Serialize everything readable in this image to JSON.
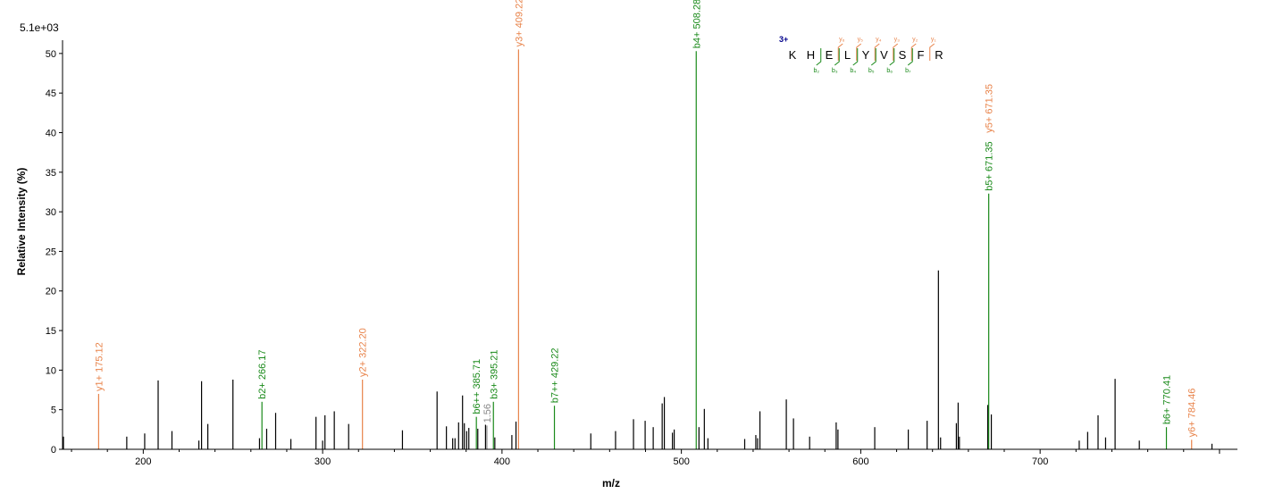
{
  "chart_data": {
    "type": "bar",
    "subtype": "mass-spectrum",
    "scale_label": "5.1e+03",
    "xlabel": "m/z",
    "ylabel": "Relative   Intensity (%)",
    "xlim": [
      155,
      810
    ],
    "ylim": [
      0,
      51
    ],
    "x_ticks": [
      200,
      300,
      400,
      500,
      600,
      700
    ],
    "y_ticks": [
      0,
      5,
      10,
      15,
      20,
      25,
      30,
      35,
      40,
      45,
      50
    ],
    "colors": {
      "y_ion": "#e8834a",
      "b_ion": "#1a8a1a",
      "unassigned": "#000000",
      "other": "#888888",
      "charge": "#00008b"
    },
    "peaks": [
      {
        "mz": 155.5,
        "intensity": 1.6
      },
      {
        "mz": 175.12,
        "intensity": 7.0,
        "ion": "y",
        "label": "y1+ 175.12"
      },
      {
        "mz": 190.8,
        "intensity": 1.6
      },
      {
        "mz": 200.8,
        "intensity": 2.0
      },
      {
        "mz": 208.3,
        "intensity": 8.7
      },
      {
        "mz": 216.0,
        "intensity": 2.3
      },
      {
        "mz": 231.0,
        "intensity": 1.1
      },
      {
        "mz": 232.5,
        "intensity": 8.6
      },
      {
        "mz": 236.0,
        "intensity": 3.2
      },
      {
        "mz": 250.0,
        "intensity": 8.8
      },
      {
        "mz": 264.8,
        "intensity": 1.4
      },
      {
        "mz": 266.17,
        "intensity": 6.0,
        "ion": "b",
        "label": "b2+ 266.17"
      },
      {
        "mz": 268.8,
        "intensity": 2.6
      },
      {
        "mz": 273.8,
        "intensity": 4.6
      },
      {
        "mz": 282.3,
        "intensity": 1.3
      },
      {
        "mz": 296.3,
        "intensity": 4.1
      },
      {
        "mz": 300.0,
        "intensity": 1.1
      },
      {
        "mz": 301.3,
        "intensity": 4.3
      },
      {
        "mz": 306.5,
        "intensity": 4.8
      },
      {
        "mz": 314.5,
        "intensity": 3.2
      },
      {
        "mz": 322.2,
        "intensity": 8.8,
        "ion": "y",
        "label": "y2+ 322.20"
      },
      {
        "mz": 344.5,
        "intensity": 2.4
      },
      {
        "mz": 363.8,
        "intensity": 7.3
      },
      {
        "mz": 369.0,
        "intensity": 2.9
      },
      {
        "mz": 372.5,
        "intensity": 1.4
      },
      {
        "mz": 373.8,
        "intensity": 1.4
      },
      {
        "mz": 375.8,
        "intensity": 3.4
      },
      {
        "mz": 378.0,
        "intensity": 6.8
      },
      {
        "mz": 379.0,
        "intensity": 3.3
      },
      {
        "mz": 380.3,
        "intensity": 2.3
      },
      {
        "mz": 381.5,
        "intensity": 2.7
      },
      {
        "mz": 385.71,
        "intensity": 4.1,
        "ion": "b",
        "label": "b6++ 385.71"
      },
      {
        "mz": 386.5,
        "intensity": 2.6
      },
      {
        "mz": 390.8,
        "intensity": 3.1
      },
      {
        "mz": 391.56,
        "intensity": 3.0,
        "ion": "other",
        "label": "1.56"
      },
      {
        "mz": 395.21,
        "intensity": 6.0,
        "ion": "b",
        "label": "b3+ 395.21"
      },
      {
        "mz": 396.0,
        "intensity": 1.5
      },
      {
        "mz": 405.5,
        "intensity": 1.8
      },
      {
        "mz": 407.8,
        "intensity": 3.5
      },
      {
        "mz": 409.22,
        "intensity": 50.5,
        "ion": "y",
        "label": "y3+ 409.22"
      },
      {
        "mz": 429.22,
        "intensity": 5.5,
        "ion": "b",
        "label": "b7++ 429.22"
      },
      {
        "mz": 449.5,
        "intensity": 2.0
      },
      {
        "mz": 463.3,
        "intensity": 2.3
      },
      {
        "mz": 473.3,
        "intensity": 3.8
      },
      {
        "mz": 479.8,
        "intensity": 3.6
      },
      {
        "mz": 484.3,
        "intensity": 2.8
      },
      {
        "mz": 489.3,
        "intensity": 5.8
      },
      {
        "mz": 490.5,
        "intensity": 6.6
      },
      {
        "mz": 495.0,
        "intensity": 2.1
      },
      {
        "mz": 496.0,
        "intensity": 2.5
      },
      {
        "mz": 508.28,
        "intensity": 50.3,
        "ion": "b",
        "label": "b4+ 508.28"
      },
      {
        "mz": 509.8,
        "intensity": 2.8
      },
      {
        "mz": 512.8,
        "intensity": 5.1
      },
      {
        "mz": 514.8,
        "intensity": 1.4
      },
      {
        "mz": 535.3,
        "intensity": 1.3
      },
      {
        "mz": 541.5,
        "intensity": 1.8
      },
      {
        "mz": 542.5,
        "intensity": 1.4
      },
      {
        "mz": 543.8,
        "intensity": 4.8
      },
      {
        "mz": 558.5,
        "intensity": 6.3
      },
      {
        "mz": 562.5,
        "intensity": 3.9
      },
      {
        "mz": 571.5,
        "intensity": 1.6
      },
      {
        "mz": 586.3,
        "intensity": 3.4
      },
      {
        "mz": 587.3,
        "intensity": 2.5
      },
      {
        "mz": 607.8,
        "intensity": 2.8
      },
      {
        "mz": 626.5,
        "intensity": 2.5
      },
      {
        "mz": 637.0,
        "intensity": 3.6
      },
      {
        "mz": 643.3,
        "intensity": 22.6
      },
      {
        "mz": 644.5,
        "intensity": 1.5
      },
      {
        "mz": 653.3,
        "intensity": 3.3
      },
      {
        "mz": 654.3,
        "intensity": 5.9
      },
      {
        "mz": 655.0,
        "intensity": 1.6
      },
      {
        "mz": 670.8,
        "intensity": 5.6
      },
      {
        "mz": 671.35,
        "intensity": 32.3,
        "ion": "b",
        "label": "b5+ 671.35"
      },
      {
        "mz": 671.36,
        "intensity": 32.3,
        "ion": "y",
        "label": "y5+ 671.35",
        "label_only": true
      },
      {
        "mz": 672.8,
        "intensity": 4.4
      },
      {
        "mz": 721.8,
        "intensity": 1.1
      },
      {
        "mz": 726.5,
        "intensity": 2.2
      },
      {
        "mz": 732.3,
        "intensity": 4.3
      },
      {
        "mz": 736.5,
        "intensity": 1.5
      },
      {
        "mz": 741.8,
        "intensity": 8.9
      },
      {
        "mz": 755.3,
        "intensity": 1.1
      },
      {
        "mz": 770.41,
        "intensity": 2.8,
        "ion": "b",
        "label": "b6+ 770.41"
      },
      {
        "mz": 784.46,
        "intensity": 1.2,
        "ion": "y",
        "label": "y6+ 784.46"
      },
      {
        "mz": 795.8,
        "intensity": 0.7
      }
    ]
  },
  "sequence": {
    "charge": "3+",
    "residues": [
      "K",
      "H",
      "E",
      "L",
      "Y",
      "V",
      "S",
      "F",
      "R"
    ],
    "y_ions": [
      "y₆",
      "y₅",
      "y₄",
      "y₃",
      "y₂",
      "y₁"
    ],
    "b_ions": [
      "b₂",
      "b₃",
      "b₄",
      "b₅",
      "b₆",
      "b₇"
    ]
  }
}
